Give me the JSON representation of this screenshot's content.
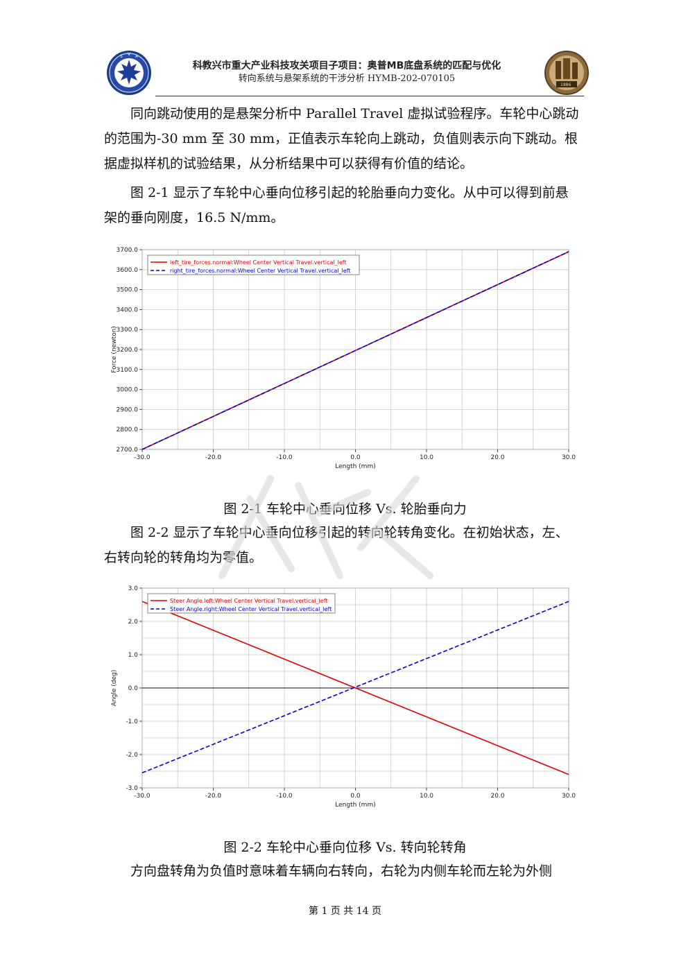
{
  "header": {
    "title": "科教兴市重大产业科技攻关项目子项目：奥普MB底盘系统的匹配与优化",
    "subtitle": "转向系统与悬架系统的干涉分析 HYMB-202-070105"
  },
  "body": {
    "para1_line1": "同向跳动使用的是悬架分析中 Parallel Travel 虚拟试验程序。车轮中心跳动",
    "para1_line2": "的范围为-30 mm 至 30 mm，正值表示车轮向上跳动，负值则表示向下跳动。根",
    "para1_line3": "据虚拟样机的试验结果，从分析结果中可以获得有价值的结论。",
    "para2_line1": "图 2-1 显示了车轮中心垂向位移引起的轮胎垂向力变化。从中可以得到前悬",
    "para2_line2": "架的垂向刚度，16.5 N/mm。",
    "caption1": "图 2-1 车轮中心垂向位移 Vs. 轮胎垂向力",
    "para3_line1": "图 2-2 显示了车轮中心垂向位移引起的转向轮转角变化。在初始状态，左、",
    "para3_line2": "右转向轮的转角均为零值。",
    "caption2": "图 2-2 车轮中心垂向位移 Vs. 转向轮转角",
    "para4_line1": "方向盘转角为负值时意味着车辆向右转向，右轮为内侧车轮而左轮为外侧"
  },
  "footer": {
    "page": "第 1 页 共 14 页"
  },
  "chart_data": [
    {
      "type": "line",
      "title": "",
      "xlabel": "Length (mm)",
      "ylabel": "Force (newton)",
      "xlim": [
        -30,
        30
      ],
      "ylim": [
        2700,
        3700
      ],
      "xticks": [
        "-30.0",
        "-20.0",
        "-10.0",
        "0.0",
        "10.0",
        "20.0",
        "30.0"
      ],
      "yticks": [
        "2700.0",
        "2800.0",
        "2900.0",
        "3000.0",
        "3100.0",
        "3200.0",
        "3300.0",
        "3400.0",
        "3500.0",
        "3600.0",
        "3700.0"
      ],
      "grid": true,
      "legend": "top-left",
      "series": [
        {
          "name": "left_tire_forces.normal:Wheel Center Vertical Travel.vertical_left",
          "color": "#e00000",
          "dash": "solid",
          "x": [
            -30,
            30
          ],
          "y": [
            2700,
            3690
          ]
        },
        {
          "name": "right_tire_forces.normal:Wheel Center Vertical Travel.vertical_left",
          "color": "#0000dd",
          "dash": "dashed",
          "x": [
            -30,
            30
          ],
          "y": [
            2700,
            3690
          ]
        }
      ]
    },
    {
      "type": "line",
      "title": "",
      "xlabel": "Length (mm)",
      "ylabel": "Angle (deg)",
      "xlim": [
        -30,
        30
      ],
      "ylim": [
        -3,
        3
      ],
      "xticks": [
        "-30.0",
        "-20.0",
        "-10.0",
        "0.0",
        "10.0",
        "20.0",
        "30.0"
      ],
      "yticks": [
        "-3.0",
        "-2.0",
        "-1.0",
        "0.0",
        "1.0",
        "2.0",
        "3.0"
      ],
      "grid": true,
      "legend": "top-left",
      "series": [
        {
          "name": "Steer Angle.left:Wheel Center Vertical Travel.vertical_left",
          "color": "#e00000",
          "dash": "solid",
          "x": [
            -30,
            30
          ],
          "y": [
            2.6,
            -2.6
          ]
        },
        {
          "name": "Steer Angle.right:Wheel Center Vertical Travel.vertical_left",
          "color": "#0000dd",
          "dash": "dashed",
          "x": [
            -30,
            30
          ],
          "y": [
            -2.55,
            2.6
          ]
        }
      ]
    }
  ]
}
